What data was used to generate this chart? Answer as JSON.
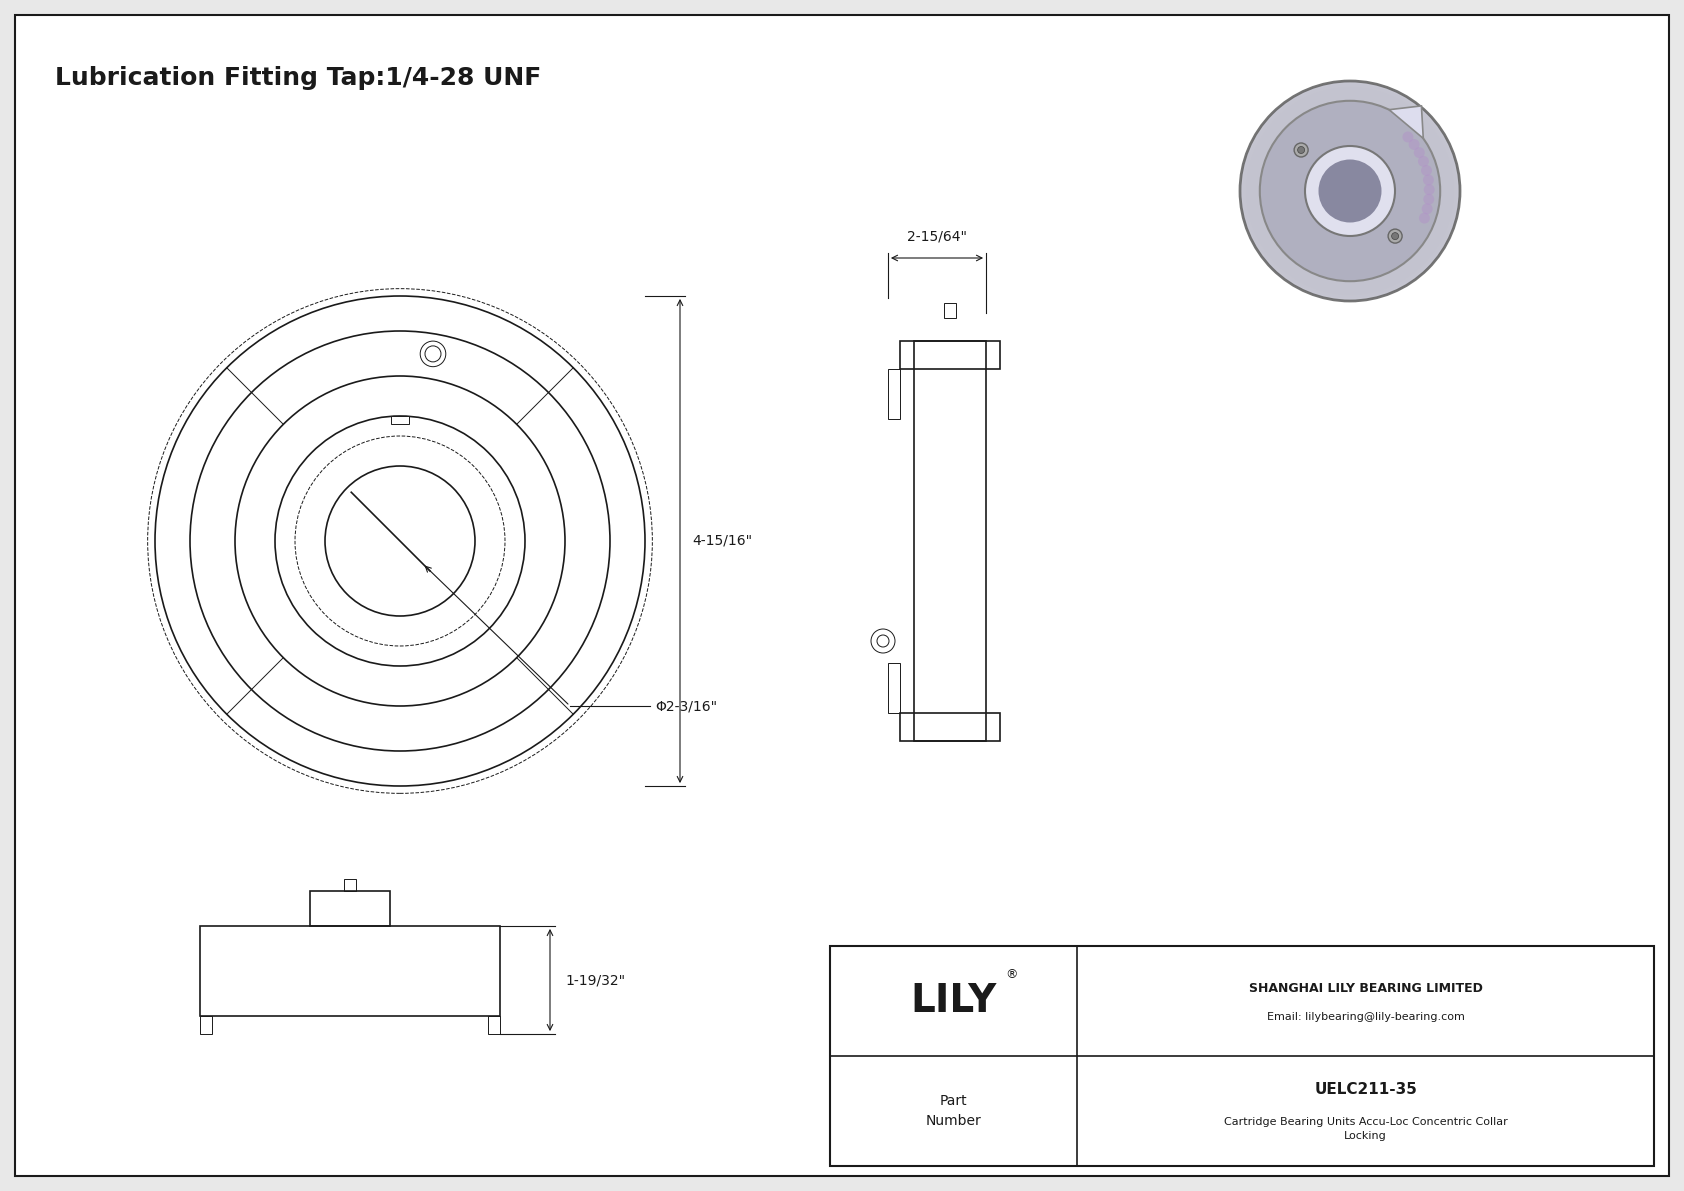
{
  "bg_color": "#e8e8e8",
  "white": "#ffffff",
  "dark": "#1a1a1a",
  "gray": "#555555",
  "light_gray": "#aaaaaa",
  "title": "Lubrication Fitting Tap:1/4-28 UNF",
  "dim_4_15_16": "4-15/16\"",
  "dim_2_3_16": "Φ2-3/16\"",
  "dim_2_15_64": "2-15/64\"",
  "dim_1_19_32": "1-19/32\"",
  "company_name": "SHANGHAI LILY BEARING LIMITED",
  "company_email": "Email: lilybearing@lily-bearing.com",
  "part_number_label": "Part\nNumber",
  "part_number": "UELC211-35",
  "part_desc": "Cartridge Bearing Units Accu-Loc Concentric Collar\nLocking",
  "logo_text": "LILY",
  "logo_sup": "®"
}
